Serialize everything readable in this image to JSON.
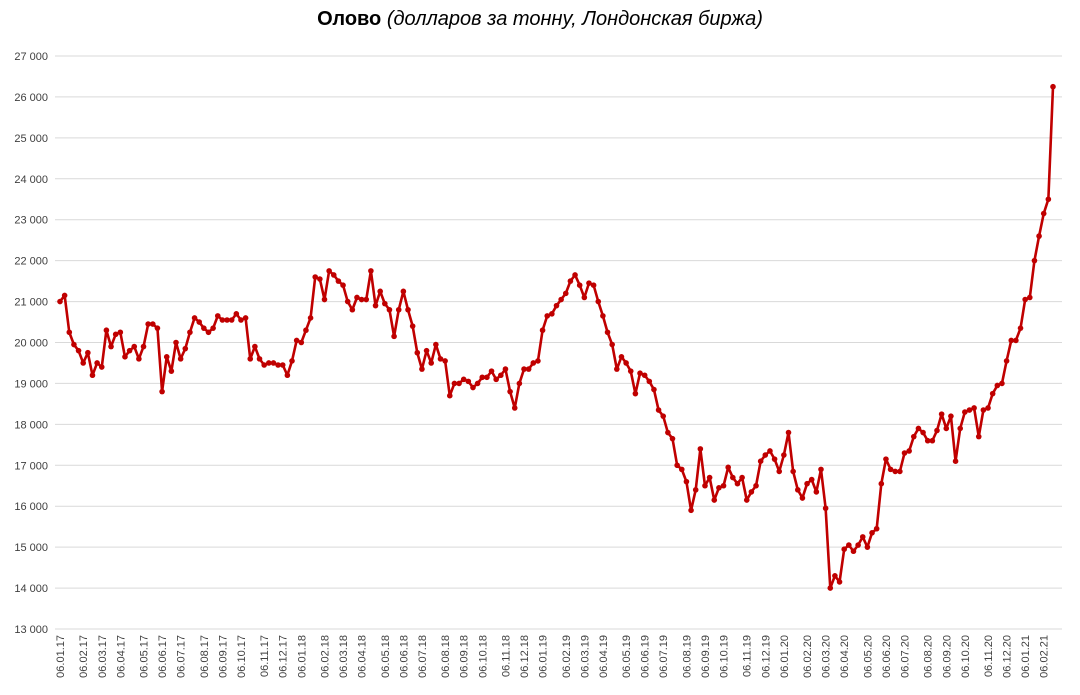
{
  "chart_data": {
    "type": "line",
    "title": "Олово",
    "subtitle": "(долларов за тонну, Лондонская биржа)",
    "color": "#c00000",
    "grid": true,
    "ylim": [
      13000,
      27000
    ],
    "yticks": [
      {
        "value": 13000,
        "label": "13 000"
      },
      {
        "value": 14000,
        "label": "14 000"
      },
      {
        "value": 15000,
        "label": "15 000"
      },
      {
        "value": 16000,
        "label": "16 000"
      },
      {
        "value": 17000,
        "label": "17 000"
      },
      {
        "value": 18000,
        "label": "18 000"
      },
      {
        "value": 19000,
        "label": "19 000"
      },
      {
        "value": 20000,
        "label": "20 000"
      },
      {
        "value": 21000,
        "label": "21 000"
      },
      {
        "value": 22000,
        "label": "22 000"
      },
      {
        "value": 23000,
        "label": "23 000"
      },
      {
        "value": 24000,
        "label": "24 000"
      },
      {
        "value": 25000,
        "label": "25 000"
      },
      {
        "value": 26000,
        "label": "26 000"
      },
      {
        "value": 27000,
        "label": "27 000"
      }
    ],
    "categories": [
      "06.01.17",
      null,
      null,
      null,
      null,
      "06.02.17",
      null,
      null,
      null,
      "06.03.17",
      null,
      null,
      null,
      "06.04.17",
      null,
      null,
      null,
      null,
      "06.05.17",
      null,
      null,
      null,
      "06.06.17",
      null,
      null,
      null,
      "06.07.17",
      null,
      null,
      null,
      null,
      "06.08.17",
      null,
      null,
      null,
      "06.09.17",
      null,
      null,
      null,
      "06.10.17",
      null,
      null,
      null,
      null,
      "06.11.17",
      null,
      null,
      null,
      "06.12.17",
      null,
      null,
      null,
      "06.01.18",
      null,
      null,
      null,
      null,
      "06.02.18",
      null,
      null,
      null,
      "06.03.18",
      null,
      null,
      null,
      "06.04.18",
      null,
      null,
      null,
      null,
      "06.05.18",
      null,
      null,
      null,
      "06.06.18",
      null,
      null,
      null,
      "06.07.18",
      null,
      null,
      null,
      null,
      "06.08.18",
      null,
      null,
      null,
      "06.09.18",
      null,
      null,
      null,
      "06.10.18",
      null,
      null,
      null,
      null,
      "06.11.18",
      null,
      null,
      null,
      "06.12.18",
      null,
      null,
      null,
      "06.01.19",
      null,
      null,
      null,
      null,
      "06.02.19",
      null,
      null,
      null,
      "06.03.19",
      null,
      null,
      null,
      "06.04.19",
      null,
      null,
      null,
      null,
      "06.05.19",
      null,
      null,
      null,
      "06.06.19",
      null,
      null,
      null,
      "06.07.19",
      null,
      null,
      null,
      null,
      "06.08.19",
      null,
      null,
      null,
      "06.09.19",
      null,
      null,
      null,
      "06.10.19",
      null,
      null,
      null,
      null,
      "06.11.19",
      null,
      null,
      null,
      "06.12.19",
      null,
      null,
      null,
      "06.01.20",
      null,
      null,
      null,
      null,
      "06.02.20",
      null,
      null,
      null,
      "06.03.20",
      null,
      null,
      null,
      "06.04.20",
      null,
      null,
      null,
      null,
      "06.05.20",
      null,
      null,
      null,
      "06.06.20",
      null,
      null,
      null,
      "06.07.20",
      null,
      null,
      null,
      null,
      "06.08.20",
      null,
      null,
      null,
      "06.09.20",
      null,
      null,
      null,
      "06.10.20",
      null,
      null,
      null,
      null,
      "06.11.20",
      null,
      null,
      null,
      "06.12.20",
      null,
      null,
      null,
      "06.01.21",
      null,
      null,
      null,
      "06.02.21",
      null,
      null
    ],
    "values": [
      21000,
      21150,
      20250,
      19950,
      19800,
      19500,
      19750,
      19200,
      19500,
      19400,
      20300,
      19900,
      20200,
      20250,
      19650,
      19800,
      19900,
      19600,
      19900,
      20450,
      20450,
      20350,
      18800,
      19650,
      19300,
      20000,
      19600,
      19850,
      20250,
      20600,
      20500,
      20350,
      20250,
      20350,
      20650,
      20550,
      20550,
      20550,
      20700,
      20550,
      20600,
      19600,
      19900,
      19600,
      19450,
      19500,
      19500,
      19450,
      19450,
      19200,
      19550,
      20050,
      20000,
      20300,
      20600,
      21600,
      21550,
      21050,
      21750,
      21650,
      21500,
      21400,
      21000,
      20800,
      21100,
      21050,
      21050,
      21750,
      20900,
      21250,
      20950,
      20800,
      20150,
      20800,
      21250,
      20800,
      20400,
      19750,
      19350,
      19800,
      19500,
      19950,
      19600,
      19550,
      18700,
      19000,
      19000,
      19100,
      19050,
      18900,
      19000,
      19150,
      19150,
      19300,
      19100,
      19200,
      19350,
      18800,
      18400,
      19000,
      19350,
      19350,
      19500,
      19550,
      20300,
      20650,
      20700,
      20900,
      21050,
      21200,
      21500,
      21650,
      21400,
      21100,
      21450,
      21400,
      21000,
      20650,
      20250,
      19950,
      19350,
      19650,
      19500,
      19300,
      18750,
      19250,
      19200,
      19050,
      18850,
      18350,
      18200,
      17800,
      17650,
      17000,
      16900,
      16600,
      15900,
      16400,
      17400,
      16500,
      16700,
      16150,
      16450,
      16500,
      16950,
      16700,
      16550,
      16700,
      16150,
      16350,
      16500,
      17100,
      17250,
      17350,
      17150,
      16850,
      17250,
      17800,
      16850,
      16400,
      16200,
      16550,
      16650,
      16350,
      16900,
      15950,
      14000,
      14300,
      14150,
      14950,
      15050,
      14900,
      15050,
      15250,
      15000,
      15350,
      15450,
      16550,
      17150,
      16900,
      16850,
      16850,
      17300,
      17350,
      17700,
      17900,
      17800,
      17600,
      17600,
      17850,
      18250,
      17900,
      18200,
      17100,
      17900,
      18300,
      18350,
      18400,
      17700,
      18350,
      18400,
      18750,
      18950,
      19000,
      19550,
      20050,
      20050,
      20350,
      21050,
      21100,
      22000,
      22600,
      23150,
      23500,
      26250
    ]
  }
}
